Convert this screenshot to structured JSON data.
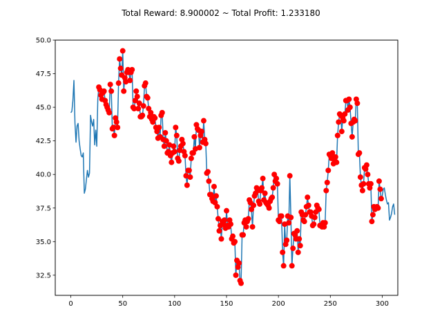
{
  "chart_data": {
    "type": "line",
    "title": "Total Reward: 8.900002 ~ Total Profit: 1.233180",
    "xlabel": "",
    "ylabel": "",
    "xlim": [
      -15,
      315
    ],
    "ylim": [
      31.0,
      50.0
    ],
    "xticks": [
      0,
      50,
      100,
      150,
      200,
      250,
      300
    ],
    "yticks": [
      32.5,
      35.0,
      37.5,
      40.0,
      42.5,
      45.0,
      47.5,
      50.0
    ],
    "xtick_labels": [
      "0",
      "50",
      "100",
      "150",
      "200",
      "250",
      "300"
    ],
    "ytick_labels": [
      "32.5",
      "35.0",
      "37.5",
      "40.0",
      "42.5",
      "45.0",
      "47.5",
      "50.0"
    ],
    "grid": false,
    "series": [
      {
        "name": "price",
        "color": "#1f77b4",
        "values": [
          44.6,
          44.7,
          45.5,
          47.0,
          43.8,
          42.4,
          43.6,
          43.8,
          42.5,
          41.9,
          41.4,
          41.3,
          41.6,
          38.6,
          38.9,
          39.6,
          40.3,
          39.8,
          40.1,
          44.4,
          43.9,
          43.6,
          44.1,
          42.2,
          43.3,
          42.1,
          45.6,
          46.5,
          46.3,
          45.9,
          45.6,
          46.1,
          46.2,
          45.5,
          45.2,
          45.0,
          44.8,
          44.6,
          46.7,
          46.2,
          43.4,
          43.5,
          42.9,
          44.2,
          43.9,
          43.5,
          46.8,
          48.6,
          47.9,
          47.4,
          49.2,
          46.2,
          47.2,
          46.9,
          47.6,
          47.8,
          47.6,
          47.0,
          47.6,
          47.8,
          45.0,
          44.9,
          45.5,
          46.2,
          45.8,
          44.9,
          45.3,
          44.3,
          44.3,
          44.4,
          45.1,
          46.6,
          46.8,
          45.8,
          45.7,
          44.9,
          44.3,
          44.6,
          44.1,
          43.9,
          44.3,
          44.2,
          43.5,
          43.2,
          42.7,
          43.5,
          42.8,
          44.4,
          44.6,
          42.6,
          42.1,
          43.1,
          42.5,
          41.6,
          41.7,
          42.2,
          41.4,
          40.9,
          41.6,
          42.1,
          41.7,
          43.5,
          42.9,
          41.2,
          41.0,
          41.8,
          42.1,
          42.6,
          42.3,
          41.7,
          41.4,
          39.9,
          39.2,
          40.3,
          40.3,
          39.8,
          41.2,
          41.6,
          41.6,
          42.8,
          41.9,
          43.7,
          43.4,
          43.3,
          42.0,
          42.9,
          43.2,
          42.4,
          44.0,
          42.6,
          42.3,
          40.1,
          40.2,
          39.5,
          38.5,
          38.5,
          38.2,
          38.0,
          39.1,
          37.9,
          38.4,
          37.6,
          36.7,
          35.8,
          36.2,
          35.2,
          36.5,
          36.3,
          36.6,
          36.0,
          37.3,
          36.2,
          36.1,
          36.6,
          36.3,
          35.2,
          35.4,
          34.9,
          35.0,
          32.5,
          33.6,
          33.1,
          33.4,
          32.1,
          31.9,
          35.5,
          35.5,
          36.4,
          36.6,
          36.1,
          36.5,
          36.7,
          38.1,
          37.9,
          37.4,
          36.1,
          37.7,
          38.4,
          38.6,
          39.0,
          38.8,
          38.0,
          37.8,
          38.8,
          39.0,
          39.7,
          38.1,
          38.6,
          37.9,
          37.8,
          37.7,
          37.5,
          38.0,
          38.2,
          38.3,
          39.0,
          40.0,
          39.5,
          39.7,
          39.3,
          36.6,
          36.5,
          36.9,
          36.9,
          34.2,
          33.2,
          36.3,
          34.8,
          35.1,
          36.9,
          36.4,
          39.9,
          36.8,
          33.2,
          34.5,
          35.6,
          35.5,
          35.2,
          35.8,
          34.2,
          35.2,
          34.7,
          37.2,
          37.0,
          36.6,
          36.5,
          37.0,
          37.6,
          38.3,
          37.7,
          37.2,
          37.2,
          36.9,
          36.2,
          36.3,
          36.8,
          37.2,
          37.7,
          37.5,
          37.4,
          36.2,
          36.2,
          36.1,
          36.4,
          36.1,
          36.4,
          38.8,
          39.4,
          40.3,
          41.5,
          41.4,
          41.2,
          41.6,
          40.8,
          41.1,
          41.3,
          40.9,
          42.9,
          43.9,
          44.5,
          44.4,
          43.2,
          44.2,
          44.0,
          44.5,
          45.5,
          45.5,
          44.8,
          45.6,
          45.0,
          43.8,
          42.8,
          43.9,
          44.1,
          44.0,
          45.6,
          45.3,
          41.5,
          41.6,
          39.8,
          39.2,
          38.8,
          39.3,
          40.5,
          40.4,
          40.7,
          40.0,
          39.3,
          39.0,
          39.3,
          36.5,
          37.0,
          37.6,
          37.4,
          37.5,
          37.6,
          37.5,
          39.5,
          38.9,
          38.2,
          38.4,
          38.9,
          39.0,
          38.5,
          38.1,
          37.8,
          37.9,
          36.6,
          36.8,
          37.1,
          37.6,
          37.8,
          37.0
        ]
      },
      {
        "name": "trades",
        "color": "#ff0000",
        "marker": "circle",
        "start_index": 27,
        "end_index": 299
      }
    ]
  }
}
